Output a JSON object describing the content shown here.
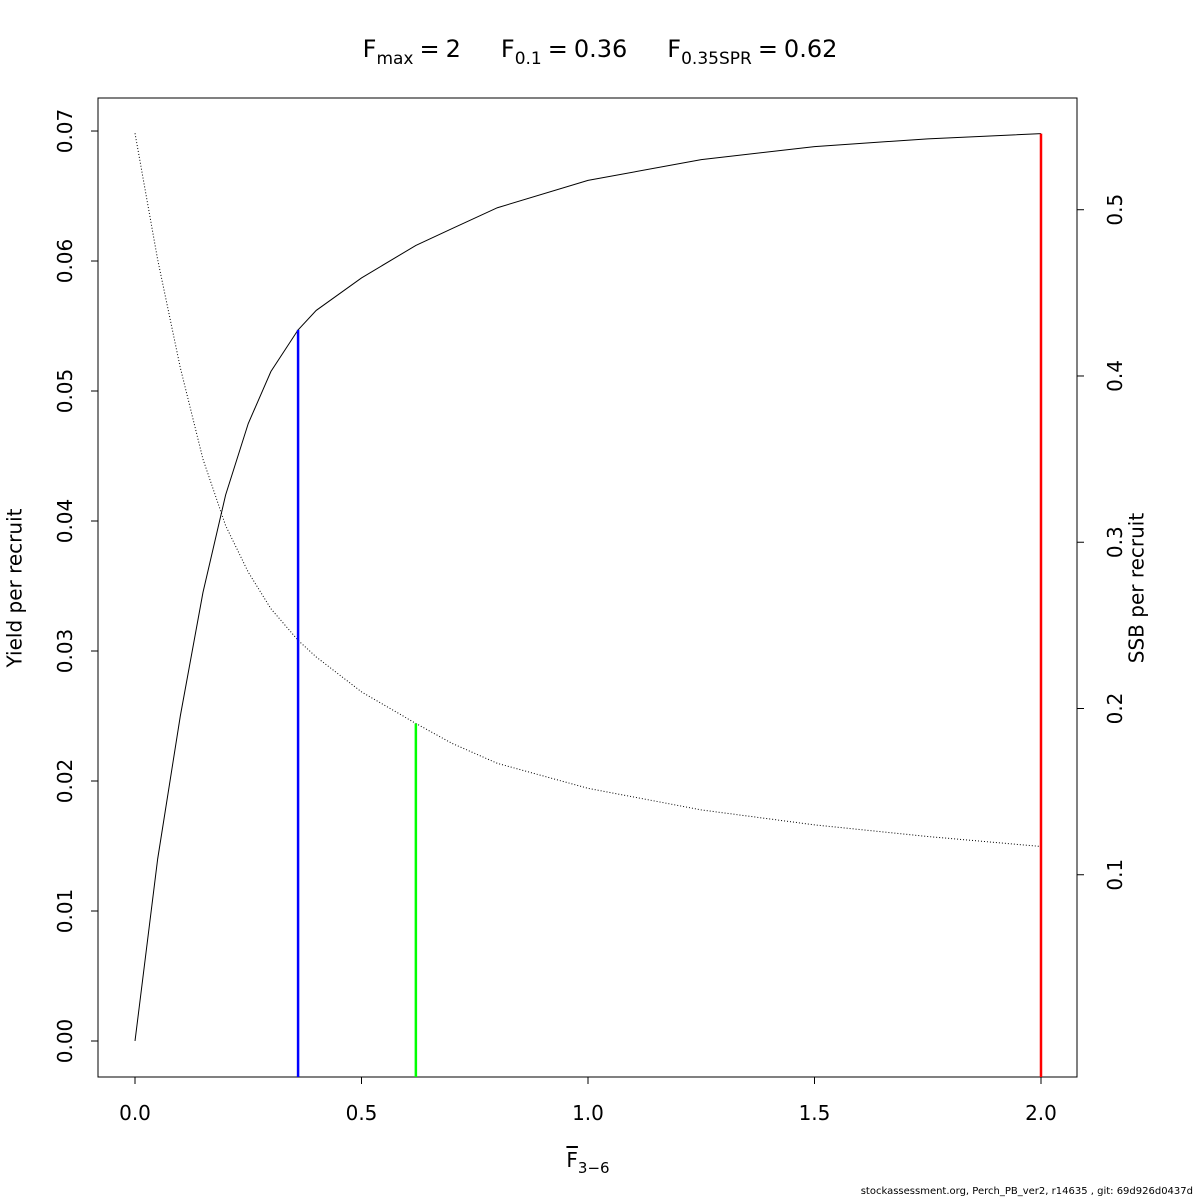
{
  "chart_data": {
    "type": "line",
    "title_parts": [
      {
        "base": "F",
        "sub": "max",
        "relation": "=",
        "ref": 0
      },
      {
        "base": "F",
        "sub": "0.1",
        "relation": "=",
        "ref": 1
      },
      {
        "base": "F",
        "sub": "0.35SPR",
        "relation": "=",
        "ref": 2
      }
    ],
    "reference_points": [
      {
        "x": 2,
        "top": 0.0698,
        "axis": "y",
        "color": "#ff0000"
      },
      {
        "x": 0.36,
        "top": 0.0547,
        "axis": "y",
        "color": "#0000ff"
      },
      {
        "x": 0.62,
        "top": 0.191,
        "axis": "y2",
        "color": "#00ff00"
      }
    ],
    "x_label": {
      "base": "F",
      "sub": "3−6"
    },
    "y_label": "Yield per recruit",
    "y2_label": "SSB per recruit",
    "footer": "stockassessment.org, Perch_PB_ver2, r14635 , git: 69d926d0437d",
    "x": [
      0,
      0.05,
      0.1,
      0.15,
      0.2,
      0.25,
      0.3,
      0.36,
      0.4,
      0.5,
      0.62,
      0.7,
      0.8,
      1.0,
      1.25,
      1.5,
      1.75,
      2.0
    ],
    "series": [
      {
        "name": "Yield per recruit",
        "color": "#000000",
        "style": "solid",
        "axis": "y",
        "values": [
          0,
          0.014,
          0.025,
          0.0345,
          0.042,
          0.0475,
          0.0515,
          0.0547,
          0.0562,
          0.0587,
          0.0612,
          0.0625,
          0.0641,
          0.0662,
          0.0678,
          0.0688,
          0.0694,
          0.0698
        ]
      },
      {
        "name": "SSB per recruit",
        "color": "#000000",
        "style": "dotted",
        "axis": "y2",
        "values": [
          0.546,
          0.47,
          0.405,
          0.35,
          0.31,
          0.282,
          0.26,
          0.241,
          0.231,
          0.21,
          0.191,
          0.179,
          0.167,
          0.152,
          0.139,
          0.13,
          0.123,
          0.117
        ]
      }
    ],
    "xlim": [
      -0.0817,
      2.0795
    ],
    "xticks": [
      {
        "value": 0,
        "label": "0.0"
      },
      0.5,
      {
        "value": 1,
        "label": "1.0"
      },
      1.5,
      {
        "value": 2,
        "label": "2.0"
      }
    ],
    "ylim": [
      -0.00277,
      0.07254
    ],
    "yticks": [
      {
        "value": 0,
        "label": "0.00"
      },
      0.01,
      0.02,
      0.03,
      0.04,
      0.05,
      0.06,
      0.07
    ],
    "y2lim": [
      -0.02165,
      0.5672
    ],
    "y2ticks": [
      0.1,
      0.2,
      0.3,
      0.4,
      0.5
    ],
    "grid": false
  }
}
